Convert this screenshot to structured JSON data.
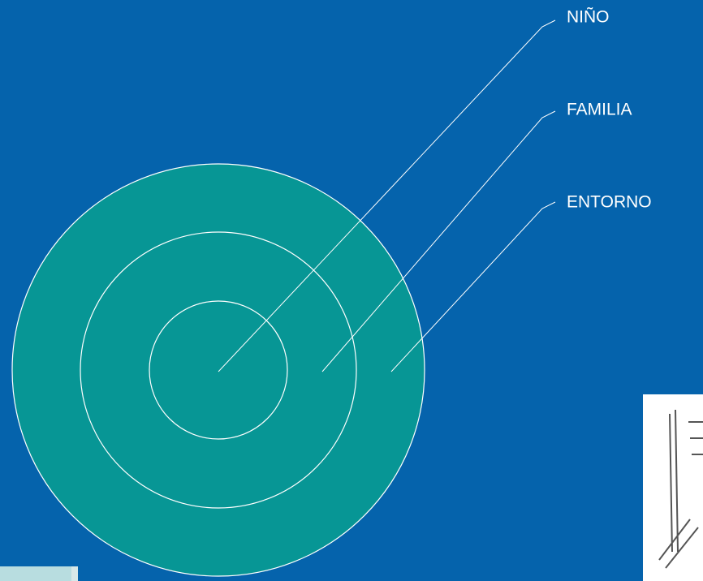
{
  "labels": [
    "NIÑO",
    "FAMILIA",
    "ENTORNO"
  ]
}
